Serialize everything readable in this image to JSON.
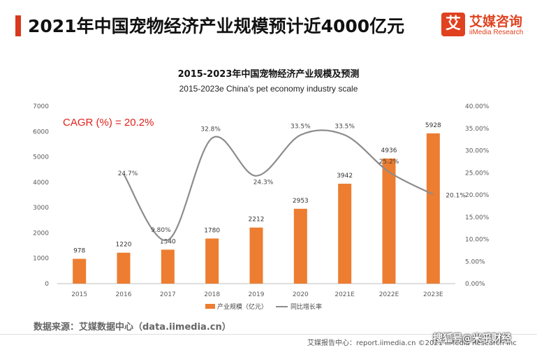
{
  "page": {
    "title": "2021年中国宠物经济产业规模预计近4000亿元",
    "logo_mark": "艾",
    "logo_cn": "艾媒咨询",
    "logo_en": "iiMedia Research"
  },
  "chart_data": {
    "type": "bar+line",
    "title": "2015-2023年中国宠物经济产业规模及预测",
    "subtitle": "2015-2023e China's pet economy industry scale",
    "categories": [
      "2015",
      "2016",
      "2017",
      "2018",
      "2019",
      "2020",
      "2021E",
      "2022E",
      "2023E"
    ],
    "series": [
      {
        "name": "产业规模（亿元）",
        "type": "bar",
        "axis": "left",
        "color": "#ed7d31",
        "values": [
          978,
          1220,
          1340,
          1780,
          2212,
          2953,
          3942,
          4936,
          5928
        ],
        "labels": [
          "978",
          "1220",
          "1340",
          "1780",
          "2212",
          "2953",
          "3942",
          "4936",
          "5928"
        ]
      },
      {
        "name": "同比增长率",
        "type": "line",
        "axis": "right",
        "color": "#8c8c8c",
        "values": [
          null,
          24.7,
          9.8,
          32.8,
          24.3,
          33.5,
          33.5,
          25.2,
          20.1
        ],
        "labels": [
          "",
          "24.7%",
          "9.80%",
          "32.8%",
          "24.3%",
          "33.5%",
          "33.5%",
          "25.2%",
          "20.1%"
        ]
      }
    ],
    "y_left": {
      "min": 0,
      "max": 7000,
      "ticks": [
        "0",
        "1000",
        "2000",
        "3000",
        "4000",
        "5000",
        "6000",
        "7000"
      ]
    },
    "y_right": {
      "min": 0,
      "max": 40,
      "ticks": [
        "0.00%",
        "5.00%",
        "10.00%",
        "15.00%",
        "20.00%",
        "25.00%",
        "30.00%",
        "35.00%",
        "40.00%"
      ]
    },
    "annotation": "CAGR (%) = 20.2%",
    "legend_position": "bottom-center",
    "grid": false
  },
  "source": "数据来源：艾媒数据中心（data.iimedia.cn）",
  "footer": "艾媒报告中心：report.iimedia.cn ©2021 iiMedia Research Inc",
  "watermark": "搜狐号@米乎财经"
}
